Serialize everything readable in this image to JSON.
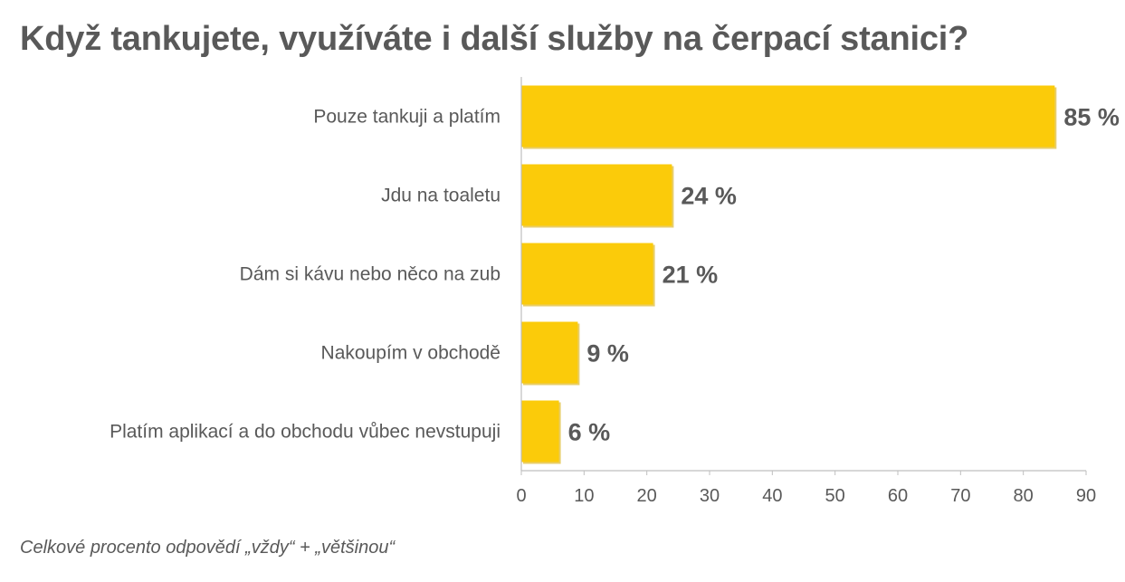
{
  "title": "Když tankujete, využíváte i další služby na čerpací stanici?",
  "footnote": "Celkové procento odpovědí „vždy“ + „většinou“",
  "colors": {
    "bar": "#FBCB0A",
    "bar_shadow": "#D9AE06",
    "text": "#595959",
    "axis": "#BFBFBF"
  },
  "chart_data": {
    "type": "bar",
    "orientation": "horizontal",
    "categories": [
      "Pouze tankuji a platím",
      "Jdu na toaletu",
      "Dám si kávu nebo něco na zub",
      "Nakoupím v obchodě",
      "Platím aplikací a do obchodu vůbec nevstupuji"
    ],
    "values": [
      85,
      24,
      21,
      9,
      6
    ],
    "data_labels": [
      "85 %",
      "24 %",
      "21 %",
      "9 %",
      "6 %"
    ],
    "xlim": [
      0,
      90
    ],
    "xticks": [
      0,
      10,
      20,
      30,
      40,
      50,
      60,
      70,
      80,
      90
    ],
    "grid": false
  }
}
